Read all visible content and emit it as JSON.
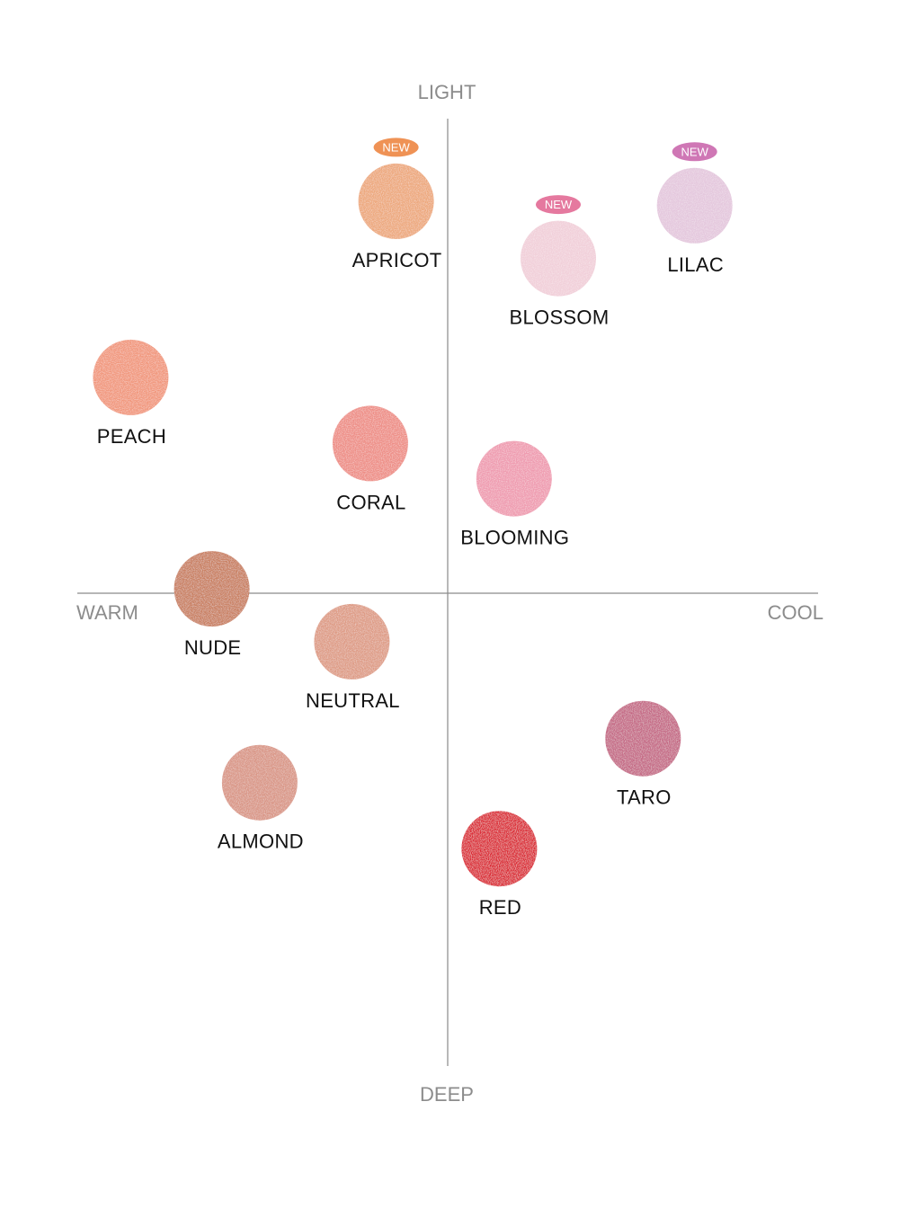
{
  "chart_data": {
    "type": "scatter",
    "title": "",
    "axes": {
      "top": "LIGHT",
      "bottom": "DEEP",
      "left": "WARM",
      "right": "COOL"
    },
    "xlim": [
      -10,
      10
    ],
    "ylim": [
      -10,
      10
    ],
    "grid": false,
    "badge_text": "NEW",
    "points": [
      {
        "name": "APRICOT",
        "x": -1.4,
        "y": 8.9,
        "color": "#eda87c",
        "new": true,
        "badge_color": "#ef9255"
      },
      {
        "name": "BLOSSOM",
        "x": 3.0,
        "y": 7.6,
        "color": "#f1cfd9",
        "new": true,
        "badge_color": "#e5799f"
      },
      {
        "name": "LILAC",
        "x": 6.7,
        "y": 8.8,
        "color": "#e4c7dd",
        "new": true,
        "badge_color": "#cf77b5"
      },
      {
        "name": "PEACH",
        "x": -8.6,
        "y": 4.9,
        "color": "#f1977b",
        "new": false
      },
      {
        "name": "CORAL",
        "x": -2.1,
        "y": 3.4,
        "color": "#ee8e86",
        "new": false
      },
      {
        "name": "BLOOMING",
        "x": 1.8,
        "y": 2.6,
        "color": "#ef9bb0",
        "new": false
      },
      {
        "name": "NUDE",
        "x": -6.4,
        "y": 0.1,
        "color": "#c97f61",
        "new": false
      },
      {
        "name": "NEUTRAL",
        "x": -2.6,
        "y": -1.1,
        "color": "#de9b85",
        "new": false
      },
      {
        "name": "ALMOND",
        "x": -5.1,
        "y": -4.3,
        "color": "#d99585",
        "new": false
      },
      {
        "name": "TARO",
        "x": 5.3,
        "y": -3.3,
        "color": "#c56985",
        "new": false
      },
      {
        "name": "RED",
        "x": 1.4,
        "y": -5.8,
        "color": "#db2a35",
        "new": false
      }
    ]
  }
}
